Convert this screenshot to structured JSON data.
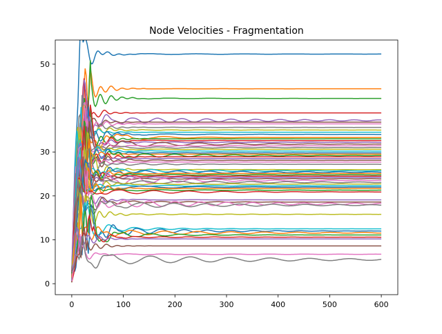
{
  "chart_data": {
    "type": "line",
    "title": "Node Velocities - Fragmentation",
    "xlabel": "",
    "ylabel": "",
    "xlim": [
      -32,
      632
    ],
    "ylim": [
      -2.5,
      55.5
    ],
    "xticks": [
      0,
      100,
      200,
      300,
      400,
      500,
      600
    ],
    "yticks": [
      0,
      10,
      20,
      30,
      40,
      50
    ],
    "x_range": [
      0,
      600
    ],
    "grid": false,
    "legend": "none",
    "palette": [
      "#1f77b4",
      "#ff7f0e",
      "#2ca02c",
      "#d62728",
      "#9467bd",
      "#8c564b",
      "#e377c2",
      "#7f7f7f",
      "#bcbd22",
      "#17becf"
    ],
    "series_final_values": [
      52.3,
      44.4,
      42.2,
      38.9,
      37.2,
      36.8,
      36.4,
      35.6,
      35.0,
      34.5,
      34.0,
      33.3,
      33.0,
      32.6,
      32.2,
      31.8,
      31.4,
      31.0,
      30.6,
      30.2,
      29.8,
      29.5,
      29.2,
      28.9,
      28.5,
      28.1,
      27.7,
      27.2,
      26.0,
      25.7,
      25.4,
      25.1,
      24.8,
      24.5,
      24.2,
      23.9,
      23.5,
      23.1,
      22.7,
      22.3,
      22.0,
      21.7,
      21.3,
      20.9,
      19.1,
      18.6,
      18.2,
      17.9,
      15.8,
      12.5,
      12.0,
      11.6,
      11.1,
      10.6,
      10.2,
      8.6,
      6.7,
      5.5
    ]
  }
}
